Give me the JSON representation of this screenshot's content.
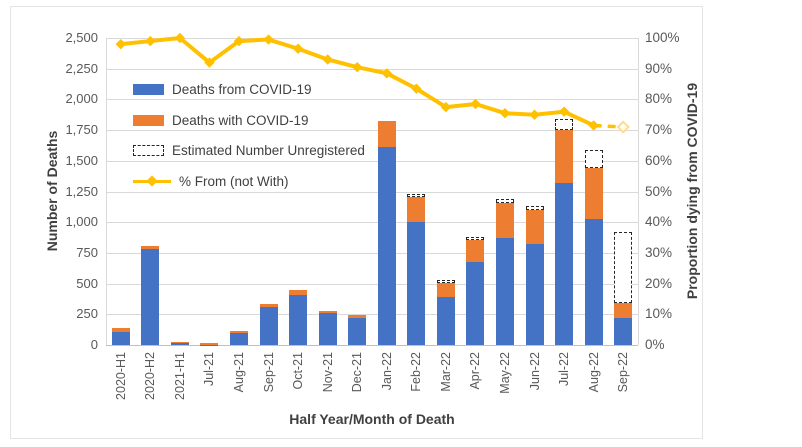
{
  "chart_data": {
    "type": "bar",
    "subtype": "stacked-bar-with-line-combo",
    "categories": [
      "2020-H1",
      "2020-H2",
      "2021-H1",
      "Jul-21",
      "Aug-21",
      "Sep-21",
      "Oct-21",
      "Nov-21",
      "Dec-21",
      "Jan-22",
      "Feb-22",
      "Mar-22",
      "Apr-22",
      "May-22",
      "Jun-22",
      "Jul-22",
      "Aug-22",
      "Sep-22"
    ],
    "series": [
      {
        "name": "Deaths from COVID-19",
        "type": "bar",
        "stacked": true,
        "color": "#4472C4",
        "values": [
          105,
          785,
          20,
          3,
          100,
          310,
          405,
          260,
          220,
          1610,
          1000,
          390,
          675,
          870,
          820,
          1320,
          1025,
          220
        ]
      },
      {
        "name": "Deaths with COVID-19",
        "type": "bar",
        "stacked": true,
        "color": "#ED7D31",
        "values": [
          30,
          25,
          5,
          17,
          15,
          25,
          45,
          20,
          25,
          215,
          205,
          115,
          180,
          285,
          280,
          430,
          415,
          120
        ]
      },
      {
        "name": "Estimated Number Unregistered",
        "type": "bar",
        "stacked": true,
        "style": "white-fill-black-dashed-outline",
        "values": [
          0,
          0,
          0,
          0,
          0,
          0,
          0,
          0,
          0,
          0,
          25,
          25,
          25,
          30,
          35,
          90,
          145,
          580
        ]
      },
      {
        "name": "% From (not With)",
        "type": "line",
        "axis": "right",
        "color": "#FFC000",
        "marker": "diamond",
        "last_point_marker": "open-diamond",
        "last_segment": "dashed",
        "values": [
          98,
          99,
          100,
          92,
          99,
          99.5,
          96.5,
          93,
          90.5,
          88.5,
          83.5,
          77.5,
          78.5,
          75.5,
          75,
          76,
          71.5,
          71
        ]
      }
    ],
    "left_axis": {
      "title": "Number of Deaths",
      "min": 0,
      "max": 2500,
      "step": 250,
      "ticks": [
        "0",
        "250",
        "500",
        "750",
        "1,000",
        "1,250",
        "1,500",
        "1,750",
        "2,000",
        "2,250",
        "2,500"
      ]
    },
    "right_axis": {
      "title": "Proportion dying from COVID-19",
      "min": 0,
      "max": 100,
      "step": 10,
      "ticks": [
        "0%",
        "10%",
        "20%",
        "30%",
        "40%",
        "50%",
        "60%",
        "70%",
        "80%",
        "90%",
        "100%"
      ]
    },
    "x_axis": {
      "title": "Half Year/Month of Death"
    },
    "legend": {
      "position": "inside-top-left",
      "items": [
        "Deaths from COVID-19",
        "Deaths with COVID-19",
        "Estimated Number Unregistered",
        "% From (not With)"
      ]
    },
    "grid": true,
    "colors": {
      "bar_from": "#4472C4",
      "bar_with": "#ED7D31",
      "line": "#FFC000",
      "open_marker_stroke": "#FFDD88",
      "gridline": "#d9d9d9",
      "tick_text": "#595959",
      "title_text": "#404040"
    }
  }
}
